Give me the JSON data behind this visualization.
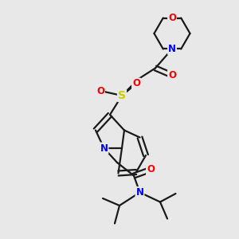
{
  "bg_color": "#e8e8e8",
  "bond_color": "#1a1a1a",
  "line_width": 1.6,
  "atom_colors": {
    "O": "#ff0000",
    "N": "#0000ff",
    "S": "#cccc00",
    "C": "#1a1a1a"
  },
  "font_size_atom": 8.5,
  "fig_bg": "#e8e8e8"
}
